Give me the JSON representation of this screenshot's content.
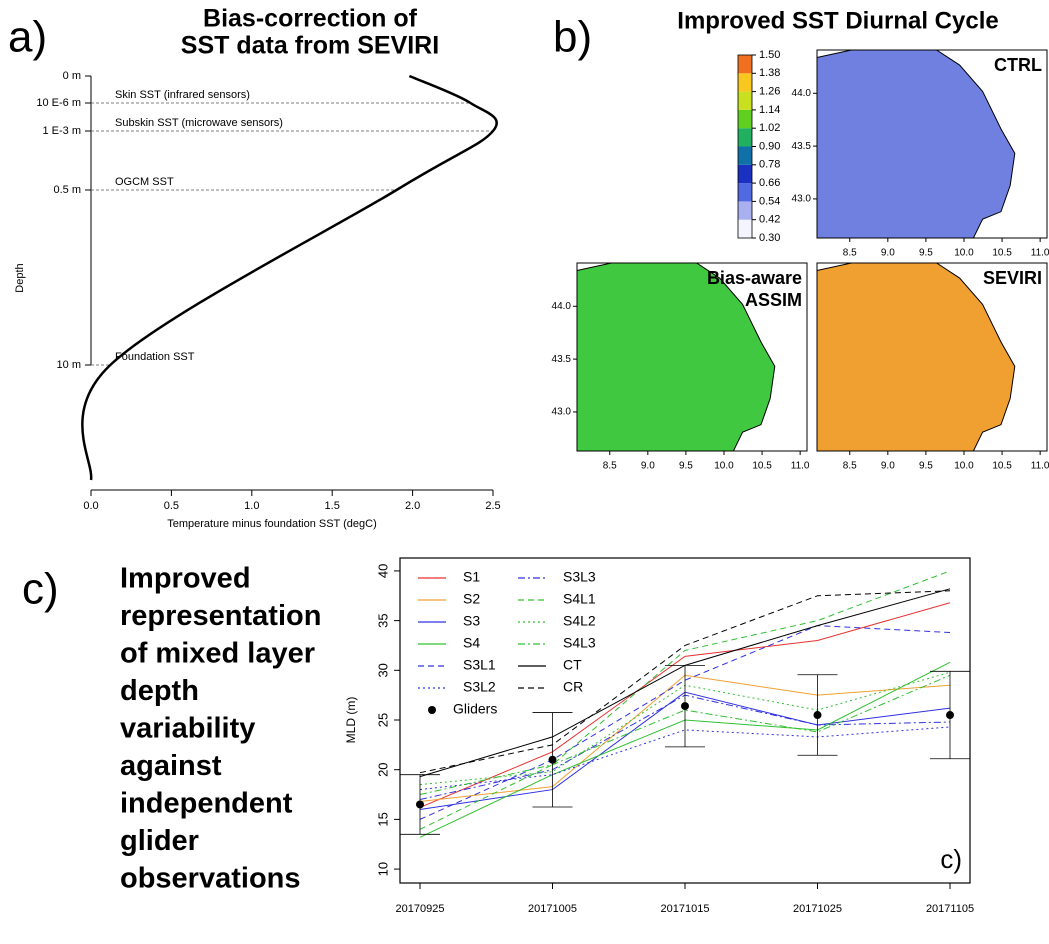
{
  "chart_data": [
    {
      "type": "profile",
      "label": "a)",
      "title": [
        "Bias-correction of",
        "SST data from SEVIRI"
      ],
      "x_label": "Temperature minus foundation SST (degC)",
      "y_label": "Depth",
      "categories": [
        "0 m",
        "10 E-6 m",
        "1 E-3 m",
        "0.5 m",
        "10 m",
        null
      ],
      "values": [
        1.98,
        2.36,
        2.5,
        1.9,
        0.12,
        0
      ],
      "annotations": [
        null,
        "Skin SST (infrared sensors)",
        "Subskin SST (microwave sensors)",
        "OGCM SST",
        "Foundation SST",
        null
      ],
      "xlim": [
        0,
        2.5
      ],
      "xticks": [
        {
          "value": 0,
          "label": "0.0"
        },
        0.5,
        {
          "value": 1,
          "label": "1.0"
        },
        1.5,
        {
          "value": 2,
          "label": "2.0"
        },
        2.5
      ],
      "color": "#000000"
    },
    {
      "type": "heatmap",
      "label": "b)",
      "title": "Improved SST Diurnal Cycle",
      "maps": [
        {
          "name": [
            "CTRL"
          ],
          "color": "#7080e0"
        },
        {
          "name": [
            "Bias-aware",
            "ASSIM"
          ],
          "color": "#40c840"
        },
        {
          "name": [
            "SEVIRI"
          ],
          "color": "#f0a030"
        }
      ],
      "xlim": [
        8.07,
        11.09
      ],
      "ylim": [
        42.63,
        44.41
      ],
      "xticks": [
        8.5,
        {
          "value": 9,
          "label": "9.0"
        },
        9.5,
        {
          "value": 10,
          "label": "10.0"
        },
        10.5,
        {
          "value": 11,
          "label": "11.0"
        }
      ],
      "yticks": [
        {
          "value": 43,
          "label": "43.0"
        },
        43.5,
        {
          "value": 44,
          "label": "44.0"
        }
      ],
      "colorbar_ticks": [
        {
          "value": 0.3,
          "label": "0.30"
        },
        0.42,
        0.54,
        0.66,
        0.78,
        {
          "value": 0.9,
          "label": "0.90"
        },
        1.02,
        1.14,
        1.26,
        1.38,
        {
          "value": 1.5,
          "label": "1.50"
        }
      ],
      "colorbar_colors": [
        "#f4f4ff",
        "#a8b0f0",
        "#5068e0",
        "#1a30c0",
        "#1070a8",
        "#20b060",
        "#60d020",
        "#c8e020",
        "#f8c820",
        "#f07020"
      ]
    },
    {
      "type": "line",
      "label": "c)",
      "panel_tag": "c)",
      "text": [
        "Improved",
        "representation",
        "of mixed layer",
        "depth",
        "variability",
        "against",
        "independent",
        "glider",
        "observations"
      ],
      "y_label": "MLD (m)",
      "categories": [
        "20170925",
        "20171005",
        "20171015",
        "20171025",
        "20171105"
      ],
      "ylim": [
        8.6,
        41.3
      ],
      "yticks": [
        10,
        15,
        20,
        25,
        30,
        35,
        40
      ],
      "series": [
        {
          "name": "S1",
          "color": "#e83030",
          "dash": "solid",
          "values": [
            16.2,
            21.8,
            31.4,
            33,
            36.8
          ]
        },
        {
          "name": "S2",
          "color": "#f0a030",
          "dash": "solid",
          "values": [
            16.8,
            18.3,
            29.5,
            27.5,
            28.5
          ]
        },
        {
          "name": "S3",
          "color": "#3030e0",
          "dash": "solid",
          "values": [
            16,
            18,
            27.8,
            24.5,
            26.2
          ]
        },
        {
          "name": "S4",
          "color": "#30c030",
          "dash": "solid",
          "values": [
            13.2,
            19.5,
            25,
            24,
            30.8
          ]
        },
        {
          "name": "S3L1",
          "color": "#3030e0",
          "dash": "dashed",
          "values": [
            15,
            21,
            29,
            34.5,
            33.8
          ]
        },
        {
          "name": "S3L2",
          "color": "#3030e0",
          "dash": "dotted",
          "values": [
            18,
            19.5,
            24,
            23.3,
            24.3
          ]
        },
        {
          "name": "S3L3",
          "color": "#3030e0",
          "dash": "dashdot",
          "values": [
            17,
            20,
            27.5,
            24.5,
            24.8
          ]
        },
        {
          "name": "S4L1",
          "color": "#30c030",
          "dash": "dashed",
          "values": [
            14,
            20.5,
            32,
            35,
            40
          ]
        },
        {
          "name": "S4L2",
          "color": "#30c030",
          "dash": "dotted",
          "values": [
            18.5,
            19.8,
            28.5,
            26,
            29.8
          ]
        },
        {
          "name": "S4L3",
          "color": "#30c030",
          "dash": "dashdot",
          "values": [
            17.5,
            20.5,
            26,
            23.8,
            29.5
          ]
        },
        {
          "name": "CT",
          "color": "#000000",
          "dash": "solid",
          "values": [
            19.3,
            23.3,
            30.5,
            34.5,
            38.2
          ]
        },
        {
          "name": "CR",
          "color": "#000000",
          "dash": "dashed",
          "values": [
            19.7,
            22.5,
            32.5,
            37.5,
            38
          ]
        }
      ],
      "points": {
        "name": "Gliders",
        "color": "#000000",
        "values": [
          16.5,
          21,
          26.4,
          25.5,
          25.5
        ],
        "errors": [
          3,
          4.75,
          4.1,
          4.05,
          4.4
        ]
      }
    }
  ]
}
